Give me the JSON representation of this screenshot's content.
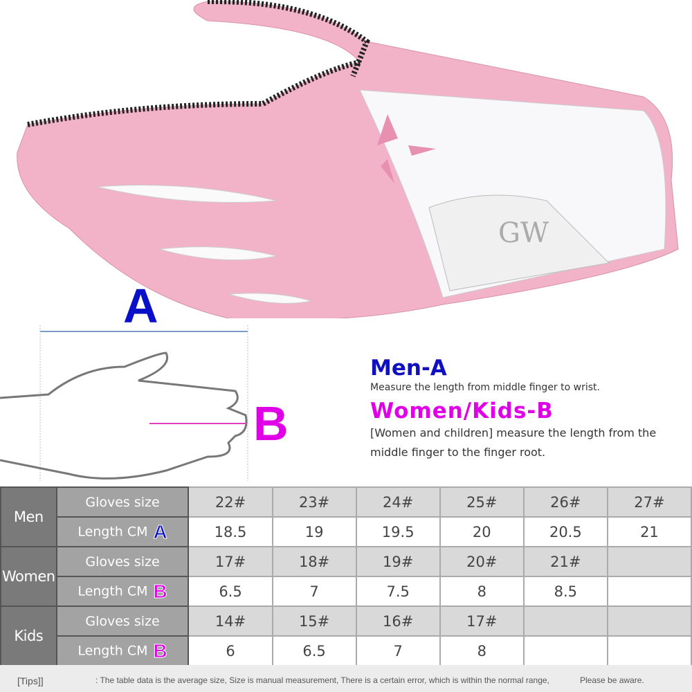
{
  "diagram": {
    "label_a": "A",
    "label_b": "B"
  },
  "info": {
    "men_title": "Men-A",
    "men_desc": "Measure the length from middle finger to wrist.",
    "women_title": "Women/Kids-B",
    "women_desc": "[Women and children] measure the length from the middle finger to the finger root."
  },
  "colors": {
    "accent_a": "#0a0fc8",
    "accent_b": "#e000e8",
    "glove_pink": "#f2b2c8"
  },
  "table": {
    "groups": [
      {
        "name": "Men",
        "size_label": "Gloves size",
        "length_label": "Length CM",
        "badge": "A",
        "sizes": [
          "22#",
          "23#",
          "24#",
          "25#",
          "26#",
          "27#"
        ],
        "lengths": [
          "18.5",
          "19",
          "19.5",
          "20",
          "20.5",
          "21"
        ]
      },
      {
        "name": "Women",
        "size_label": "Gloves size",
        "length_label": "Length CM",
        "badge": "B",
        "sizes": [
          "17#",
          "18#",
          "19#",
          "20#",
          "21#",
          ""
        ],
        "lengths": [
          "6.5",
          "7",
          "7.5",
          "8",
          "8.5",
          ""
        ]
      },
      {
        "name": "Kids",
        "size_label": "Gloves size",
        "length_label": "Length CM",
        "badge": "B",
        "sizes": [
          "14#",
          "15#",
          "16#",
          "17#",
          "",
          ""
        ],
        "lengths": [
          "6",
          "6.5",
          "7",
          "8",
          "",
          ""
        ]
      }
    ]
  },
  "tips": {
    "label": "[Tips]]",
    "text": ": The table data is the average size, Size is manual measurement,  There is a certain error, which is within the normal range,",
    "aware": "Please be aware."
  }
}
